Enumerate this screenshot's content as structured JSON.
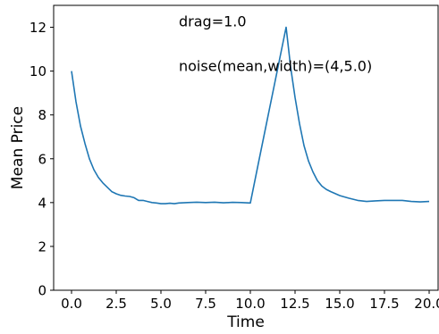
{
  "chart_data": {
    "type": "line",
    "title": "",
    "xlabel": "Time",
    "ylabel": "Mean Price",
    "xlim": [
      -1.0,
      20.5
    ],
    "ylim": [
      0,
      13
    ],
    "xticks": [
      0.0,
      2.5,
      5.0,
      7.5,
      10.0,
      12.5,
      15.0,
      17.5,
      20.0
    ],
    "xtick_labels": [
      "0.0",
      "2.5",
      "5.0",
      "7.5",
      "10.0",
      "12.5",
      "15.0",
      "17.5",
      "20.0"
    ],
    "yticks": [
      0,
      2,
      4,
      6,
      8,
      10,
      12
    ],
    "ytick_labels": [
      "0",
      "2",
      "4",
      "6",
      "8",
      "10",
      "12"
    ],
    "grid": false,
    "annotations": [
      {
        "text": "drag=1.0",
        "x": 6.0,
        "y": 12.05
      },
      {
        "text": "noise(mean,width)=(4,5.0)",
        "x": 6.0,
        "y": 10.0
      }
    ],
    "series": [
      {
        "color": "#1f77b4",
        "x": [
          0.0,
          0.25,
          0.5,
          0.75,
          1.0,
          1.25,
          1.5,
          1.75,
          2.0,
          2.25,
          2.5,
          2.75,
          3.0,
          3.25,
          3.5,
          3.75,
          4.0,
          4.25,
          4.5,
          4.75,
          5.0,
          5.25,
          5.5,
          5.75,
          6.0,
          6.5,
          7.0,
          7.5,
          8.0,
          8.5,
          9.0,
          9.5,
          10.0,
          10.5,
          11.0,
          11.5,
          12.0,
          12.25,
          12.5,
          12.75,
          13.0,
          13.25,
          13.5,
          13.75,
          14.0,
          14.25,
          14.5,
          15.0,
          15.5,
          16.0,
          16.5,
          17.0,
          17.5,
          18.0,
          18.5,
          19.0,
          19.5,
          20.0
        ],
        "y": [
          10.0,
          8.6,
          7.5,
          6.7,
          6.0,
          5.5,
          5.15,
          4.9,
          4.7,
          4.5,
          4.4,
          4.33,
          4.3,
          4.28,
          4.22,
          4.1,
          4.1,
          4.05,
          4.0,
          3.98,
          3.95,
          3.95,
          3.97,
          3.95,
          3.98,
          4.0,
          4.02,
          4.0,
          4.02,
          3.99,
          4.01,
          4.0,
          3.98,
          6.0,
          8.0,
          10.0,
          12.0,
          10.2,
          8.8,
          7.6,
          6.6,
          5.9,
          5.4,
          5.0,
          4.75,
          4.6,
          4.5,
          4.32,
          4.2,
          4.1,
          4.05,
          4.08,
          4.1,
          4.1,
          4.1,
          4.05,
          4.03,
          4.05
        ]
      }
    ]
  }
}
